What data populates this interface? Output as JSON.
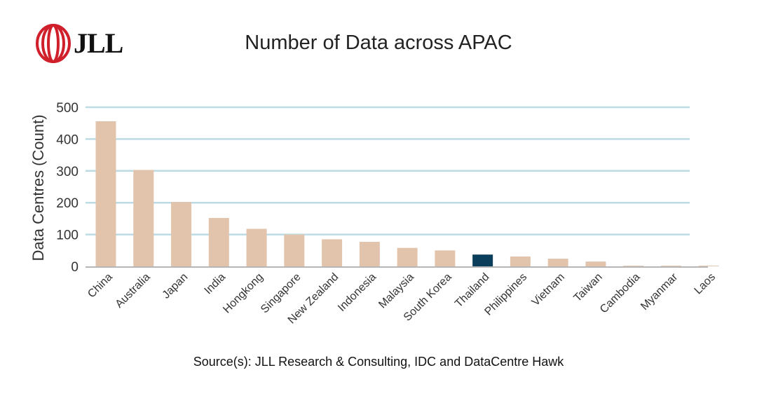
{
  "logo": {
    "text": "JLL",
    "icon": "jll-ribbon-logo-icon",
    "color": "#d0202c"
  },
  "source": "Source(s): JLL Research & Consulting, IDC and DataCentre Hawk",
  "chart_data": {
    "type": "bar",
    "title": "Number of Data across APAC",
    "xlabel": "",
    "ylabel": "Data Centres (Count)",
    "ylim": [
      0,
      500
    ],
    "yticks": [
      0,
      100,
      200,
      300,
      400,
      500
    ],
    "grid": true,
    "legend": "none",
    "categories": [
      "China",
      "Australia",
      "Japan",
      "India",
      "Hongkong",
      "Singapore",
      "New Zealand",
      "Indonesia",
      "Malaysia",
      "South Korea",
      "Thailand",
      "Philippines",
      "Vietnam",
      "Taiwan",
      "Cambodia",
      "Myanmar",
      "Laos"
    ],
    "values": [
      456,
      303,
      202,
      152,
      118,
      100,
      85,
      77,
      58,
      50,
      37,
      31,
      24,
      15,
      2,
      2,
      2
    ],
    "highlight": "Thailand",
    "colors": {
      "bar": "#e2c4ac",
      "highlight": "#0b3e5a",
      "grid": "#bcdbe4",
      "axis": "#9e9e9e"
    }
  }
}
